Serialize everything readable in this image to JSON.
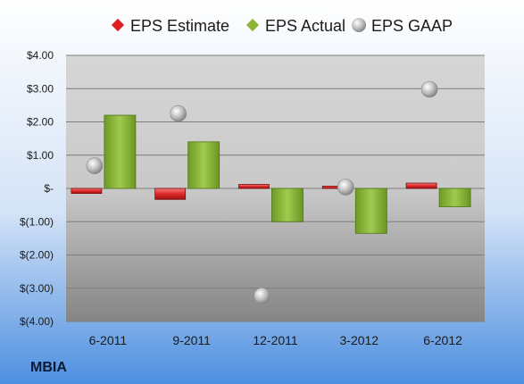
{
  "chart_data": {
    "type": "bar",
    "categories": [
      "6-2011",
      "9-2011",
      "12-2011",
      "3-2012",
      "6-2012"
    ],
    "series": [
      {
        "name": "EPS Estimate",
        "kind": "bar",
        "color": "#e02020",
        "values": [
          -0.15,
          -0.33,
          0.12,
          0.07,
          0.16
        ]
      },
      {
        "name": "EPS Actual",
        "kind": "bar",
        "color": "#8db53a",
        "values": [
          2.2,
          1.4,
          -1.0,
          -1.35,
          -0.55
        ]
      },
      {
        "name": "EPS GAAP",
        "kind": "scatter",
        "color": "#b0b0b0",
        "values": [
          0.68,
          2.25,
          -3.23,
          0.04,
          2.98
        ]
      }
    ],
    "ylim": [
      -4,
      4
    ],
    "yticks": [
      4,
      3,
      2,
      1,
      0,
      -1,
      -2,
      -3,
      -4
    ],
    "ytick_labels": [
      "$4.00",
      "$3.00",
      "$2.00",
      "$1.00",
      "$-",
      "$(1.00)",
      "$(2.00)",
      "$(3.00)",
      "$(4.00)"
    ],
    "legend_position": "top",
    "grid": true
  },
  "footer": {
    "company": "MBIA"
  }
}
